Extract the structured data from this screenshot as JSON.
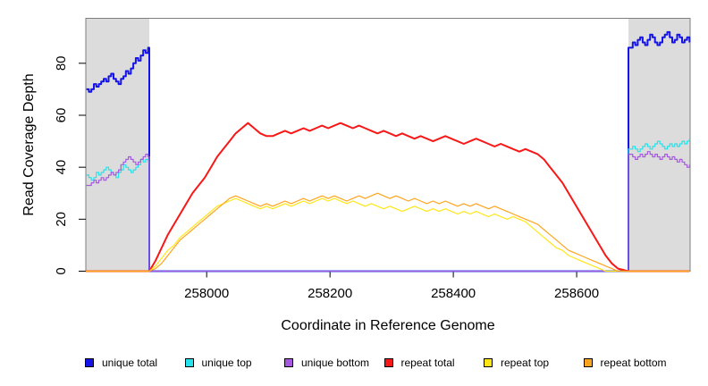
{
  "figure": {
    "background": "#ffffff",
    "box_color": "#7e7e7e",
    "tick_color": "#000000",
    "text_color": "#000000"
  },
  "chart_data": {
    "type": "line",
    "title": "",
    "xlabel": "Coordinate in Reference Genome",
    "ylabel": "Read Coverage Depth",
    "xlim": [
      257804,
      258784
    ],
    "ylim": [
      0,
      97.3
    ],
    "xticks": [
      258000,
      258200,
      258400,
      258600
    ],
    "yticks": [
      0,
      20,
      40,
      60,
      80
    ],
    "grid": false,
    "legend_position": "bottom",
    "shade_color": "#dcdcdc",
    "shaded_regions": [
      {
        "name": "unique-region-left",
        "x0": 257804,
        "x1": 257907
      },
      {
        "name": "unique-region-right",
        "x0": 258684,
        "x1": 258784
      }
    ],
    "series": [
      {
        "name": "unique total",
        "color": "#1414e8",
        "width": 2,
        "step": true,
        "segments": [
          {
            "x0": 257805,
            "dx": 4,
            "values": [
              70,
              69,
              70,
              72,
              71,
              72,
              73,
              74,
              73,
              75,
              76,
              74,
              73,
              72,
              74,
              75,
              77,
              76,
              78,
              80,
              82,
              81,
              83,
              85,
              84,
              86
            ]
          },
          {
            "points": [
              [
                257907,
                86
              ],
              [
                257907,
                0
              ],
              [
                258684,
                0
              ],
              [
                258684,
                86
              ]
            ]
          },
          {
            "x0": 258687,
            "dx": 4,
            "values": [
              86,
              88,
              87,
              89,
              90,
              88,
              87,
              89,
              91,
              90,
              88,
              87,
              88,
              90,
              91,
              92,
              90,
              88,
              89,
              91,
              90,
              88,
              89,
              90,
              88
            ]
          }
        ]
      },
      {
        "name": "unique top",
        "color": "#26e2ea",
        "width": 1.2,
        "step": true,
        "segments": [
          {
            "x0": 257805,
            "dx": 4,
            "values": [
              37,
              36,
              35,
              36,
              38,
              37,
              38,
              39,
              40,
              39,
              38,
              37,
              36,
              38,
              39,
              41,
              40,
              39,
              38,
              39,
              40,
              41,
              43,
              42,
              43,
              42
            ]
          },
          {
            "points": [
              [
                257907,
                42
              ],
              [
                257907,
                0
              ],
              [
                258684,
                0
              ],
              [
                258684,
                47
              ]
            ]
          },
          {
            "x0": 258687,
            "dx": 4,
            "values": [
              47,
              48,
              47,
              46,
              47,
              48,
              49,
              48,
              47,
              48,
              49,
              50,
              49,
              48,
              47,
              48,
              49,
              48,
              49,
              48,
              49,
              50,
              49,
              50,
              51
            ]
          }
        ]
      },
      {
        "name": "unique bottom",
        "color": "#a459df",
        "width": 1.2,
        "step": true,
        "segments": [
          {
            "x0": 257805,
            "dx": 4,
            "values": [
              33,
              33,
              34,
              35,
              34,
              35,
              36,
              35,
              36,
              37,
              38,
              37,
              38,
              39,
              41,
              42,
              43,
              44,
              43,
              42,
              41,
              42,
              43,
              44,
              45,
              44
            ]
          },
          {
            "points": [
              [
                257907,
                44
              ],
              [
                257907,
                0
              ],
              [
                258684,
                0
              ],
              [
                258684,
                45
              ]
            ]
          },
          {
            "x0": 258687,
            "dx": 4,
            "values": [
              45,
              44,
              43,
              44,
              45,
              44,
              45,
              46,
              45,
              44,
              45,
              44,
              43,
              44,
              45,
              44,
              43,
              44,
              43,
              42,
              43,
              42,
              41,
              40,
              41
            ]
          }
        ]
      },
      {
        "name": "repeat total",
        "color": "#f81818",
        "width": 2,
        "step": false,
        "segments": [
          {
            "points": [
              [
                257804,
                0
              ],
              [
                257907,
                0
              ]
            ]
          },
          {
            "x0": 257917,
            "dx": 10,
            "values": [
              4,
              9,
              14,
              18,
              22,
              26,
              30,
              33,
              36,
              40,
              44,
              47,
              50,
              53,
              55,
              57,
              55,
              53,
              52,
              52,
              53,
              54,
              53,
              54,
              55,
              54,
              55,
              56,
              55,
              56,
              57,
              56,
              55,
              56,
              55,
              54,
              53,
              54,
              53,
              52,
              53,
              52,
              51,
              52,
              51,
              50,
              51,
              52,
              51,
              50,
              49,
              50,
              51,
              50,
              49,
              48,
              49,
              48,
              47,
              46,
              47,
              46,
              45,
              43,
              40,
              37,
              34,
              30,
              26,
              22,
              18,
              14,
              10,
              6,
              3,
              1
            ]
          },
          {
            "points": [
              [
                258684,
                0
              ],
              [
                258783,
                0
              ]
            ]
          }
        ]
      },
      {
        "name": "repeat top",
        "color": "#ffe716",
        "width": 1.2,
        "step": false,
        "segments": [
          {
            "points": [
              [
                257804,
                0
              ],
              [
                257907,
                0
              ]
            ]
          },
          {
            "x0": 257917,
            "dx": 10,
            "values": [
              2,
              5,
              8,
              10,
              13,
              15,
              17,
              19,
              21,
              23,
              25,
              26,
              27,
              28,
              27,
              26,
              25,
              24,
              25,
              24,
              25,
              26,
              25,
              26,
              27,
              26,
              27,
              28,
              27,
              28,
              27,
              26,
              27,
              26,
              25,
              26,
              25,
              24,
              25,
              24,
              23,
              24,
              25,
              24,
              23,
              24,
              23,
              24,
              23,
              22,
              23,
              22,
              23,
              22,
              21,
              22,
              21,
              20,
              21,
              20,
              19,
              17,
              15,
              13,
              11,
              9,
              8,
              6,
              5,
              4,
              3,
              2,
              1,
              0,
              0,
              0
            ]
          },
          {
            "points": [
              [
                258684,
                0
              ],
              [
                258783,
                0
              ]
            ]
          }
        ]
      },
      {
        "name": "repeat bottom",
        "color": "#ffa41e",
        "width": 1.2,
        "step": false,
        "segments": [
          {
            "points": [
              [
                257804,
                0
              ],
              [
                257907,
                0
              ]
            ]
          },
          {
            "x0": 257917,
            "dx": 10,
            "values": [
              1,
              3,
              6,
              9,
              12,
              14,
              16,
              18,
              20,
              22,
              24,
              26,
              28,
              29,
              28,
              27,
              26,
              25,
              26,
              25,
              26,
              27,
              26,
              27,
              28,
              27,
              28,
              29,
              28,
              29,
              28,
              27,
              28,
              29,
              28,
              29,
              30,
              29,
              28,
              29,
              28,
              27,
              28,
              27,
              26,
              27,
              26,
              27,
              26,
              25,
              26,
              25,
              26,
              25,
              24,
              25,
              24,
              23,
              22,
              21,
              20,
              19,
              18,
              16,
              14,
              12,
              10,
              8,
              7,
              6,
              5,
              4,
              3,
              2,
              1,
              0
            ]
          },
          {
            "points": [
              [
                258684,
                0
              ],
              [
                258783,
                0
              ]
            ]
          }
        ]
      }
    ]
  }
}
